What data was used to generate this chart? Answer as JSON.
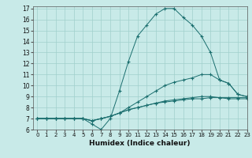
{
  "title": "",
  "xlabel": "Humidex (Indice chaleur)",
  "ylabel": "",
  "bg_color": "#c8eae8",
  "line_color": "#1a6e6e",
  "xlim": [
    -0.5,
    23
  ],
  "ylim": [
    6,
    17.2
  ],
  "xticks": [
    0,
    1,
    2,
    3,
    4,
    5,
    6,
    7,
    8,
    9,
    10,
    11,
    12,
    13,
    14,
    15,
    16,
    17,
    18,
    19,
    20,
    21,
    22,
    23
  ],
  "yticks": [
    6,
    7,
    8,
    9,
    10,
    11,
    12,
    13,
    14,
    15,
    16,
    17
  ],
  "series": [
    {
      "x": [
        0,
        1,
        2,
        3,
        4,
        5,
        6,
        7,
        8,
        9,
        10,
        11,
        12,
        13,
        14,
        15,
        16,
        17,
        18,
        19,
        20,
        21,
        22,
        23
      ],
      "y": [
        7,
        7,
        7,
        7,
        7,
        7,
        6.5,
        6,
        7,
        9.5,
        12.2,
        14.5,
        15.5,
        16.5,
        17,
        17,
        16.2,
        15.5,
        14.5,
        13,
        10.5,
        10.2,
        9.2,
        9
      ]
    },
    {
      "x": [
        0,
        1,
        2,
        3,
        4,
        5,
        6,
        7,
        8,
        9,
        10,
        11,
        12,
        13,
        14,
        15,
        16,
        17,
        18,
        19,
        20,
        21,
        22,
        23
      ],
      "y": [
        7,
        7,
        7,
        7,
        7,
        7,
        6.8,
        7,
        7.2,
        7.5,
        8,
        8.5,
        9,
        9.5,
        10,
        10.3,
        10.5,
        10.7,
        11,
        11,
        10.5,
        10.2,
        9.2,
        9
      ]
    },
    {
      "x": [
        0,
        1,
        2,
        3,
        4,
        5,
        6,
        7,
        8,
        9,
        10,
        11,
        12,
        13,
        14,
        15,
        16,
        17,
        18,
        19,
        20,
        21,
        22,
        23
      ],
      "y": [
        7,
        7,
        7,
        7,
        7,
        7,
        6.8,
        7,
        7.2,
        7.5,
        7.8,
        8,
        8.2,
        8.4,
        8.6,
        8.7,
        8.8,
        8.9,
        9,
        9,
        8.9,
        8.8,
        8.8,
        8.8
      ]
    },
    {
      "x": [
        0,
        1,
        2,
        3,
        4,
        5,
        6,
        7,
        8,
        9,
        10,
        11,
        12,
        13,
        14,
        15,
        16,
        17,
        18,
        19,
        20,
        21,
        22,
        23
      ],
      "y": [
        7,
        7,
        7,
        7,
        7,
        7,
        6.8,
        7,
        7.2,
        7.5,
        7.8,
        8,
        8.2,
        8.4,
        8.5,
        8.6,
        8.7,
        8.8,
        8.8,
        8.9,
        8.9,
        8.9,
        8.9,
        8.9
      ]
    }
  ]
}
